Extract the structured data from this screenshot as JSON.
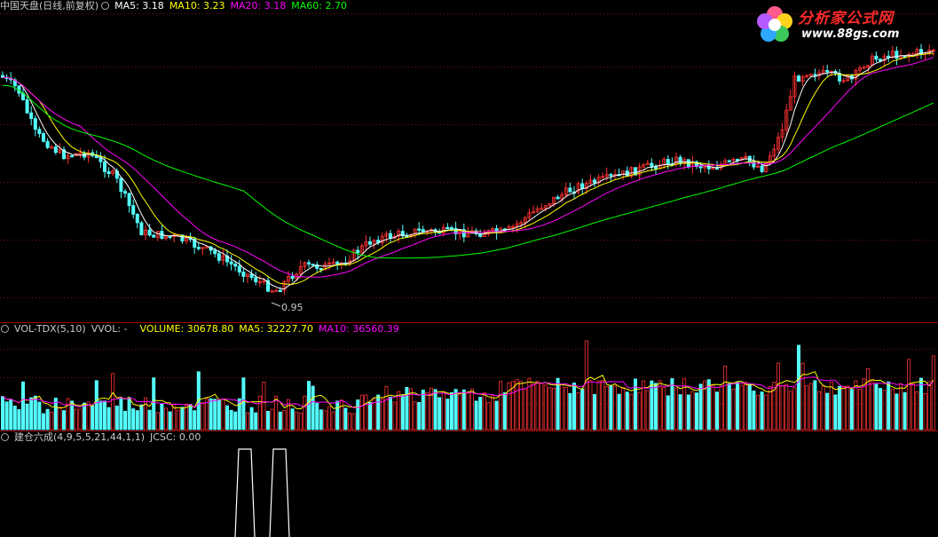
{
  "price_panel": {
    "title": "中国天盘(日线,前复权)",
    "gear_icon": "gear-icon",
    "ma5": "MA5: 3.18",
    "ma10": "MA10: 3.23",
    "ma20": "MA20: 3.18",
    "ma60": "MA60: 2.70",
    "low_label": "0.95",
    "colors": {
      "ma5": "#ffffff",
      "ma10": "#ffff00",
      "ma20": "#ff00ff",
      "ma60": "#00ff00",
      "up": "#ff3232",
      "down": "#54ffff"
    }
  },
  "volume_panel": {
    "title": "VOL-TDX(5,10)",
    "vvol": "VVOL: -",
    "volume": "VOLUME: 30678.80",
    "ma5": "MA5: 32227.70",
    "ma10": "MA10: 36560.39"
  },
  "indicator_panel": {
    "title": "建仓六成(4,9,5,5,21,44,1,1)",
    "jcsc": "JCSC: 0.00"
  },
  "logo": {
    "name": "分析家公式网",
    "url": "www.88gs.com"
  },
  "chart_data": [
    {
      "type": "candlestick",
      "title": "中国天盘(日线,前复权)",
      "series": [
        {
          "name": "MA5",
          "value": 3.18
        },
        {
          "name": "MA10",
          "value": 3.23
        },
        {
          "name": "MA20",
          "value": 3.18
        },
        {
          "name": "MA60",
          "value": 2.7
        }
      ],
      "annotations": [
        "0.95"
      ],
      "grid": true
    },
    {
      "type": "bar",
      "title": "VOL-TDX(5,10)",
      "series": [
        {
          "name": "VOLUME",
          "value": 30678.8
        },
        {
          "name": "MA5",
          "value": 32227.7
        },
        {
          "name": "MA10",
          "value": 36560.39
        }
      ],
      "grid": true
    },
    {
      "type": "line",
      "title": "建仓六成(4,9,5,5,21,44,1,1)",
      "series": [
        {
          "name": "JCSC",
          "value": 0.0
        }
      ]
    }
  ]
}
